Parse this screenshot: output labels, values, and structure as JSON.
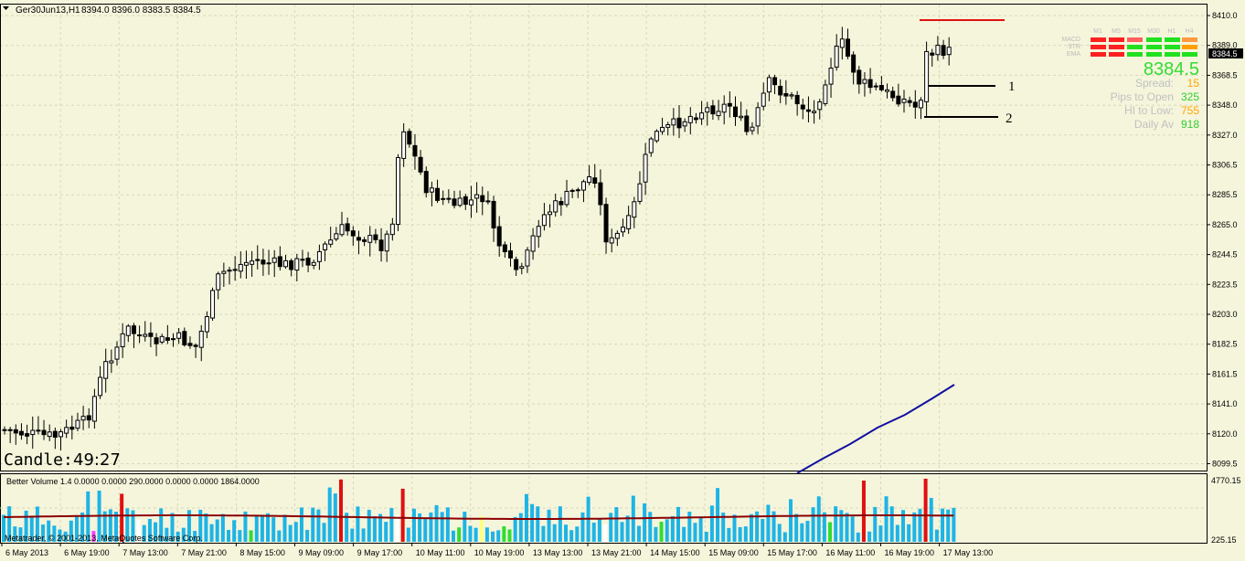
{
  "header": {
    "symbol_tf": "Ger30Jun13,H1",
    "ohlc": "8394.0 8396.0 8383.5 8384.5"
  },
  "price_axis": {
    "ticks": [
      "8410.0",
      "8389.0",
      "8368.5",
      "8348.0",
      "8327.0",
      "8306.5",
      "8285.5",
      "8265.0",
      "8244.5",
      "8223.5",
      "8203.0",
      "8182.5",
      "8161.5",
      "8141.0",
      "8120.0",
      "8099.5"
    ],
    "current_price": "8384.5"
  },
  "time_axis": {
    "labels": [
      "6 May 2013",
      "6 May 19:00",
      "7 May 13:00",
      "7 May 21:00",
      "8 May 15:00",
      "9 May 09:00",
      "9 May 17:00",
      "10 May 11:00",
      "10 May 19:00",
      "13 May 13:00",
      "13 May 21:00",
      "14 May 15:00",
      "15 May 09:00",
      "15 May 17:00",
      "16 May 11:00",
      "16 May 19:00",
      "17 May 13:00"
    ]
  },
  "candle_timer": {
    "label": "Candle:",
    "value": "49:27"
  },
  "levels": {
    "label_1": "1",
    "label_2": "2"
  },
  "dashboard": {
    "timeframes": [
      "M1",
      "M5",
      "M15",
      "M30",
      "H1",
      "H4"
    ],
    "rows": [
      "MACD",
      "STR",
      "EMA"
    ],
    "grid_colors": [
      [
        "#ff2020",
        "#ff2020",
        "#ff6060",
        "#20e020",
        "#20e020",
        "#ff9a40"
      ],
      [
        "#ff2020",
        "#ff2020",
        "#20e020",
        "#20e020",
        "#20e020",
        "#ffa000"
      ],
      [
        "#ff2020",
        "#ff2020",
        "#20e020",
        "#20e020",
        "#20e020",
        "#20e020"
      ]
    ],
    "price": "8384.5",
    "spread_label": "Spread:",
    "spread_value": "15",
    "pips_label": "Pips to Open",
    "pips_value": "325",
    "hilo_label": "HI to Low:",
    "hilo_value": "755",
    "daily_label": "Daily Av",
    "daily_value": "918"
  },
  "volume_panel": {
    "title": "Better Volume 1.4 0.0000 0.0000 290.0000 0.0000 0.0000 1864.0000",
    "top_value": "4770.15",
    "bottom_value": "225.15",
    "copyright": "Metatrader, © 2001-2013, MetaQuotes Software Corp."
  },
  "colors": {
    "background": "#f5f5dc",
    "bull": "#ffffff",
    "bear": "#000000",
    "ma_line": "#1010a0",
    "resistance_line": "#e01010",
    "volume_default": "#1eb4e6",
    "volume_red": "#e01010",
    "volume_green": "#32dc32",
    "volume_white": "#ffffff",
    "volume_magenta": "#ff40ff",
    "volume_yellow": "#ffff80",
    "volume_ma": "#8b0000"
  }
}
